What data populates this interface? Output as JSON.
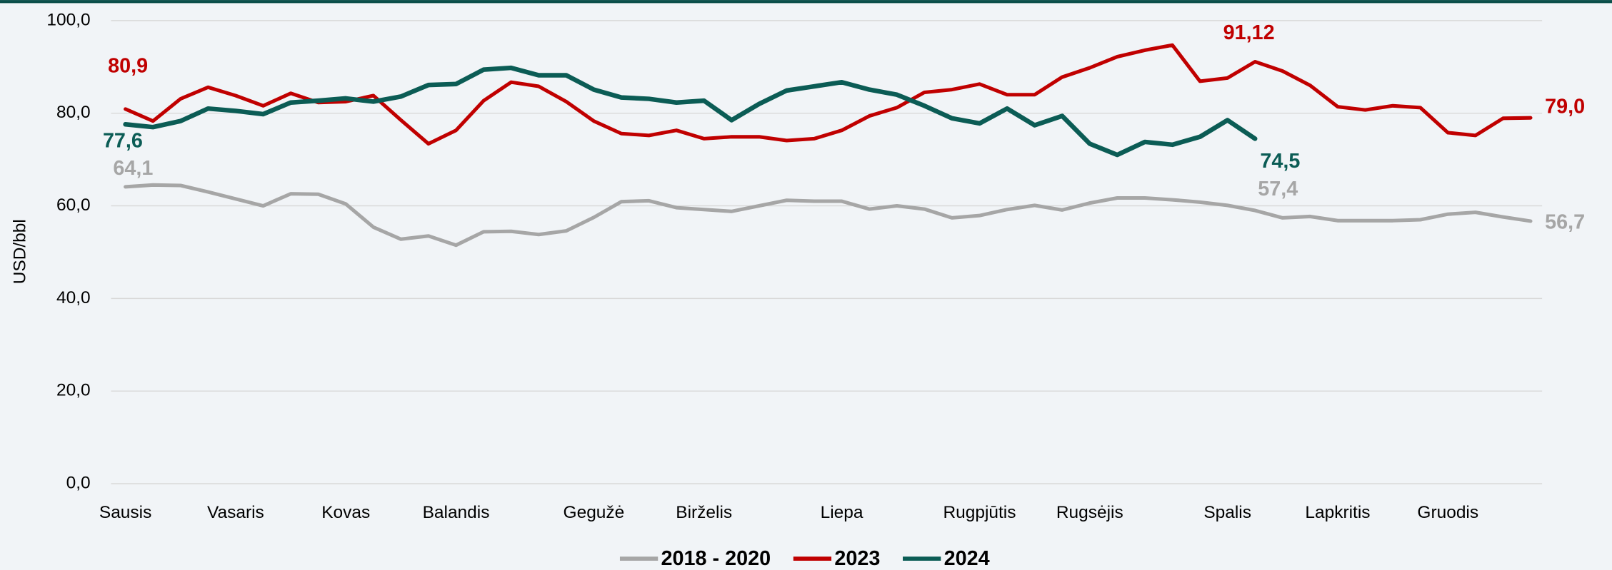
{
  "chart_data": {
    "type": "line",
    "y_label": "USD/bbl",
    "categories": [
      "Sausis",
      null,
      null,
      null,
      "Vasaris",
      null,
      null,
      null,
      "Kovas",
      null,
      null,
      null,
      "Balandis",
      null,
      null,
      null,
      null,
      "Gegužė",
      null,
      null,
      null,
      "Birželis",
      null,
      null,
      null,
      null,
      "Liepa",
      null,
      null,
      null,
      null,
      "Rugpjūtis",
      null,
      null,
      null,
      "Rugsėjis",
      null,
      null,
      null,
      null,
      "Spalis",
      null,
      null,
      null,
      "Lapkritis",
      null,
      null,
      null,
      "Gruodis",
      null,
      null,
      null
    ],
    "series": [
      {
        "name": "2018 - 2020",
        "color": "#a6a6a6",
        "values": [
          64.1,
          64.5,
          64.4,
          63.0,
          61.5,
          60.0,
          62.6,
          62.5,
          60.4,
          55.4,
          52.8,
          53.5,
          51.5,
          54.4,
          54.5,
          53.8,
          54.6,
          57.5,
          60.9,
          61.1,
          59.6,
          59.2,
          58.8,
          60.0,
          61.2,
          61.0,
          61.0,
          59.3,
          60.0,
          59.3,
          57.4,
          57.9,
          59.2,
          60.1,
          59.1,
          60.6,
          61.7,
          61.7,
          61.3,
          60.8,
          60.1,
          59.0,
          57.4,
          57.7,
          56.8,
          56.8,
          56.8,
          57.0,
          58.2,
          58.6,
          57.6,
          56.7
        ],
        "value_labels": [
          "64,1",
          null,
          null,
          null,
          null,
          null,
          null,
          null,
          null,
          null,
          null,
          null,
          null,
          null,
          null,
          null,
          null,
          null,
          null,
          null,
          null,
          null,
          null,
          null,
          null,
          null,
          null,
          null,
          null,
          null,
          null,
          null,
          null,
          null,
          null,
          null,
          null,
          null,
          null,
          null,
          null,
          null,
          "57,4",
          null,
          null,
          null,
          null,
          null,
          null,
          null,
          null,
          "56,7"
        ]
      },
      {
        "name": "2023",
        "color": "#c00000",
        "values": [
          80.9,
          78.3,
          83.1,
          85.6,
          83.8,
          81.6,
          84.3,
          82.3,
          82.5,
          83.8,
          78.5,
          73.4,
          76.3,
          82.7,
          86.7,
          85.8,
          82.5,
          78.3,
          75.6,
          75.2,
          76.3,
          74.5,
          74.9,
          74.9,
          74.1,
          74.5,
          76.3,
          79.4,
          81.2,
          84.5,
          85.1,
          86.3,
          84.0,
          84.0,
          87.8,
          89.8,
          92.2,
          93.6,
          94.7,
          86.9,
          87.6,
          91.12,
          89.1,
          86.0,
          81.4,
          80.7,
          81.6,
          81.2,
          75.8,
          75.2,
          78.9,
          79.0
        ],
        "value_labels": [
          "80,9",
          null,
          null,
          null,
          null,
          null,
          null,
          null,
          null,
          null,
          null,
          null,
          null,
          null,
          null,
          null,
          null,
          null,
          null,
          null,
          null,
          null,
          null,
          null,
          null,
          null,
          null,
          null,
          null,
          null,
          null,
          null,
          null,
          null,
          null,
          null,
          null,
          null,
          null,
          null,
          null,
          "91,12",
          null,
          null,
          null,
          null,
          null,
          null,
          null,
          null,
          null,
          "79,0"
        ]
      },
      {
        "name": "2024",
        "color": "#0b5c55",
        "values": [
          77.6,
          77.0,
          78.3,
          81.0,
          80.5,
          79.8,
          82.3,
          82.7,
          83.2,
          82.5,
          83.6,
          86.1,
          86.3,
          89.4,
          89.8,
          88.2,
          88.2,
          85.1,
          83.4,
          83.1,
          82.3,
          82.7,
          78.5,
          82.0,
          84.9,
          85.8,
          86.7,
          85.1,
          84.0,
          81.6,
          78.9,
          77.8,
          81.0,
          77.4,
          79.4,
          73.4,
          71.0,
          73.8,
          73.2,
          74.9,
          78.5,
          74.5,
          null,
          null,
          null,
          null,
          null,
          null,
          null,
          null,
          null,
          null
        ],
        "value_labels": [
          "77,6",
          null,
          null,
          null,
          null,
          null,
          null,
          null,
          null,
          null,
          null,
          null,
          null,
          null,
          null,
          null,
          null,
          null,
          null,
          null,
          null,
          null,
          null,
          null,
          null,
          null,
          null,
          null,
          null,
          null,
          null,
          null,
          null,
          null,
          null,
          null,
          null,
          null,
          null,
          null,
          null,
          "74,5",
          null,
          null,
          null,
          null,
          null,
          null,
          null,
          null,
          null,
          null
        ]
      }
    ],
    "ylim": [
      0,
      100
    ],
    "yticks": [
      {
        "value": 0,
        "label": "0,0"
      },
      {
        "value": 20,
        "label": "20,0"
      },
      {
        "value": 40,
        "label": "40,0"
      },
      {
        "value": 60,
        "label": "60,0"
      },
      {
        "value": 80,
        "label": "80,0"
      },
      {
        "value": 100,
        "label": "100,0"
      }
    ],
    "grid": true,
    "legend": "bottom"
  }
}
